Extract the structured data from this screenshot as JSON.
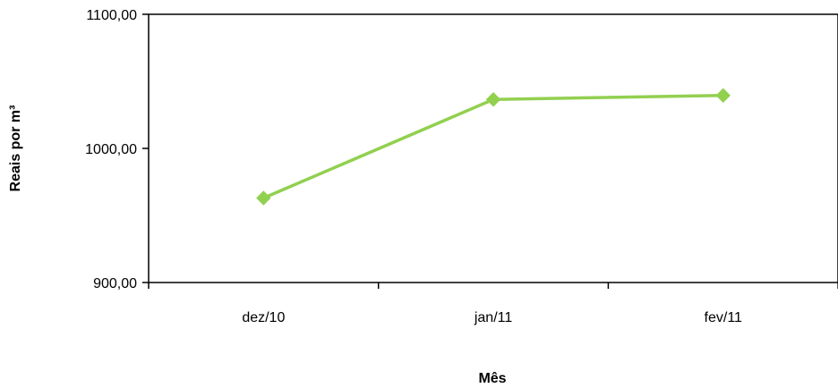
{
  "chart_data": {
    "type": "line",
    "title": "",
    "xlabel": "Mês",
    "ylabel": "Reais por  m³",
    "categories": [
      "dez/10",
      "jan/11",
      "fev/11"
    ],
    "series": [
      {
        "values": [
          963.0,
          1036.5,
          1039.5
        ],
        "color": "#92d050",
        "marker": "diamond"
      }
    ],
    "ylim": [
      900,
      1100
    ],
    "yticks": [
      900,
      1000,
      1100
    ],
    "ytick_labels": [
      "900,00",
      "1000,00",
      "1100,00"
    ],
    "grid": false,
    "legend": "none"
  }
}
